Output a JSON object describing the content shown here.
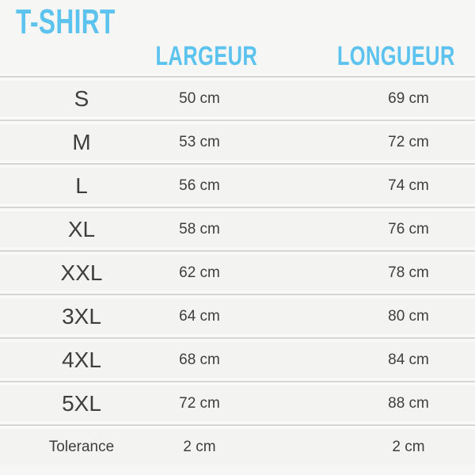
{
  "title": "T-SHIRT",
  "colors": {
    "accent": "#5cc3ef",
    "text": "#3e3e3e",
    "page_background": "#f6f6f4",
    "row_background": "#f3f3f1",
    "divider_gap": "#f9f9f7",
    "divider_line": "#d7d7d4"
  },
  "table": {
    "columns": {
      "size_label": "",
      "largeur_label": "LARGEUR",
      "longueur_label": "LONGUEUR"
    },
    "rows": [
      {
        "size": "S",
        "largeur": "50 cm",
        "longueur": "69 cm"
      },
      {
        "size": "M",
        "largeur": "53 cm",
        "longueur": "72 cm"
      },
      {
        "size": "L",
        "largeur": "56 cm",
        "longueur": "74 cm"
      },
      {
        "size": "XL",
        "largeur": "58 cm",
        "longueur": "76 cm"
      },
      {
        "size": "XXL",
        "largeur": "62 cm",
        "longueur": "78 cm"
      },
      {
        "size": "3XL",
        "largeur": "64 cm",
        "longueur": "80 cm"
      },
      {
        "size": "4XL",
        "largeur": "68 cm",
        "longueur": "84 cm"
      },
      {
        "size": "5XL",
        "largeur": "72 cm",
        "longueur": "88 cm"
      },
      {
        "size": "Tolerance",
        "largeur": "2 cm",
        "longueur": "2 cm"
      }
    ]
  }
}
